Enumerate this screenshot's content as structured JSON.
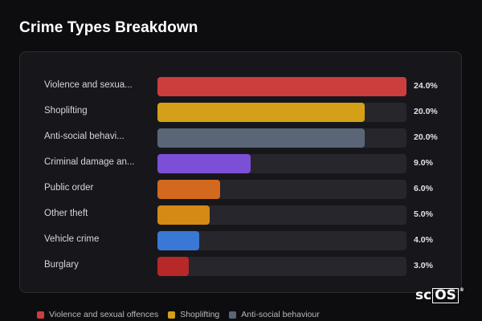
{
  "title": "Crime Types Breakdown",
  "chart_data": {
    "type": "bar",
    "orientation": "horizontal",
    "categories": [
      "Violence and sexua...",
      "Shoplifting",
      "Anti-social behavi...",
      "Criminal damage an...",
      "Public order",
      "Other theft",
      "Vehicle crime",
      "Burglary"
    ],
    "values": [
      24.0,
      20.0,
      20.0,
      9.0,
      6.0,
      5.0,
      4.0,
      3.0
    ],
    "value_labels": [
      "24.0%",
      "20.0%",
      "20.0%",
      "9.0%",
      "6.0%",
      "5.0%",
      "4.0%",
      "3.0%"
    ],
    "colors": [
      "#cc3d3d",
      "#d4a017",
      "#5a6577",
      "#7b4fd6",
      "#d2691e",
      "#d48a14",
      "#3a78d6",
      "#b82828"
    ],
    "xlim": [
      0,
      24
    ],
    "legend": [
      {
        "label": "Violence and sexual offences",
        "color": "#cc3d3d"
      },
      {
        "label": "Shoplifting",
        "color": "#d4a017"
      },
      {
        "label": "Anti-social behaviour",
        "color": "#5a6577"
      }
    ],
    "legend_position": "bottom"
  },
  "logo": {
    "prefix": "sc",
    "boxed": "OS",
    "mark": "®"
  }
}
